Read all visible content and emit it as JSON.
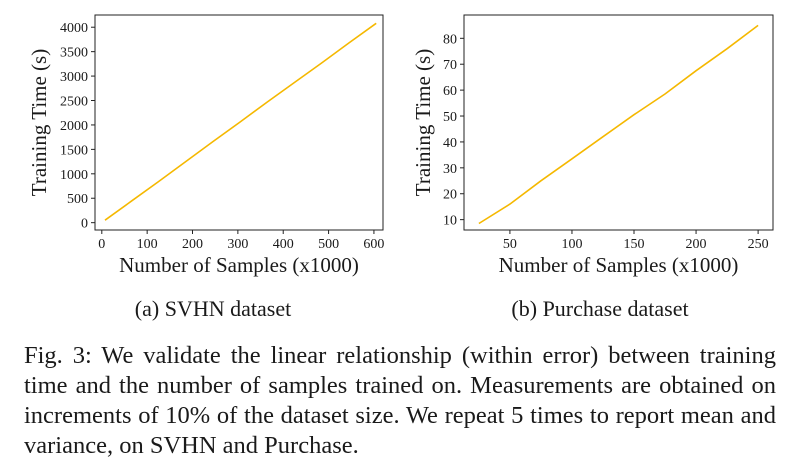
{
  "chart_data": [
    {
      "type": "line",
      "panel": "a",
      "subcaption": "(a) SVHN dataset",
      "xlabel": "Number of Samples (x1000)",
      "ylabel": "Training Time (s)",
      "xlim": [
        -15,
        620
      ],
      "ylim": [
        -150,
        4250
      ],
      "xticks": [
        "0",
        "100",
        "200",
        "300",
        "400",
        "500",
        "600"
      ],
      "yticks": [
        "0",
        "500",
        "1000",
        "1500",
        "2000",
        "2500",
        "3000",
        "3500",
        "4000"
      ],
      "xtick_values": [
        0,
        100,
        200,
        300,
        400,
        500,
        600
      ],
      "ytick_values": [
        0,
        500,
        1000,
        1500,
        2000,
        2500,
        3000,
        3500,
        4000
      ],
      "color": "#f5b800",
      "series": [
        {
          "name": "SVHN",
          "x": [
            7,
            65,
            125,
            185,
            245,
            305,
            365,
            425,
            485,
            545,
            605
          ],
          "y": [
            50,
            440,
            840,
            1250,
            1660,
            2060,
            2470,
            2870,
            3270,
            3680,
            4080
          ]
        }
      ]
    },
    {
      "type": "line",
      "panel": "b",
      "subcaption": "(b) Purchase dataset",
      "xlabel": "Number of Samples (x1000)",
      "ylabel": "Training Time (s)",
      "xlim": [
        13,
        262
      ],
      "ylim": [
        6,
        89
      ],
      "xticks": [
        "50",
        "100",
        "150",
        "200",
        "250"
      ],
      "yticks": [
        "10",
        "20",
        "30",
        "40",
        "50",
        "60",
        "70",
        "80"
      ],
      "xtick_values": [
        50,
        100,
        150,
        200,
        250
      ],
      "ytick_values": [
        10,
        20,
        30,
        40,
        50,
        60,
        70,
        80
      ],
      "color": "#f5b800",
      "series": [
        {
          "name": "Purchase",
          "x": [
            25,
            50,
            75,
            100,
            125,
            150,
            175,
            200,
            225,
            250
          ],
          "y": [
            8.5,
            16,
            25,
            33.5,
            42,
            50.5,
            58.5,
            67.5,
            76,
            85
          ]
        }
      ]
    }
  ],
  "caption": {
    "prefix": "Fig. 3:",
    "text": "We validate the linear relationship (within error) between training time and the number of samples trained on. Measurements are obtained on increments of 10% of the dataset size. We repeat 5 times to report mean and variance, on SVHN and Purchase."
  }
}
